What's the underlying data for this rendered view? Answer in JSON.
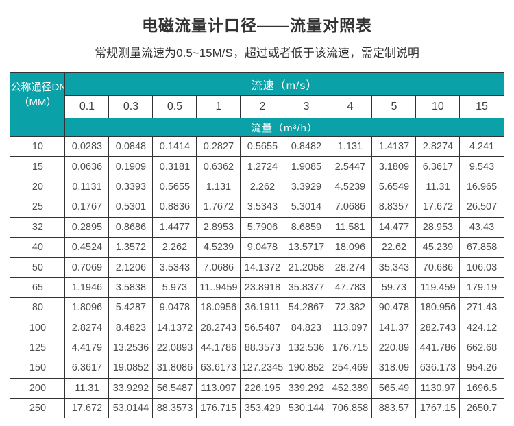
{
  "page": {
    "title": "电磁流量计口径——流量对照表",
    "subtitle": "常规测量流速为0.5~15M/S，超过或者低于该流速，需定制说明"
  },
  "colors": {
    "header_teal": "#0aa2a8",
    "border": "#333333",
    "header_text": "#ffffff",
    "data_text": "#4d4d4d",
    "title_text": "#333333"
  },
  "chart_data": {
    "type": "table",
    "title": "电磁流量计口径——流量对照表",
    "subtitle": "常规测量流速为0.5~15M/S，超过或者低于该流速，需定制说明",
    "corner_header_line1": "公称通径DN",
    "corner_header_line2": "（MM）",
    "velocity_header": "流速（m/s）",
    "flow_header": "流量（m³/h）",
    "velocities": [
      "0.1",
      "0.3",
      "0.5",
      "1",
      "2",
      "3",
      "4",
      "5",
      "10",
      "15"
    ],
    "rows": [
      {
        "dn": "10",
        "values": [
          "0.0283",
          "0.0848",
          "0.1414",
          "0.2827",
          "0.5655",
          "0.8482",
          "1.131",
          "1.4137",
          "2.8274",
          "4.241"
        ]
      },
      {
        "dn": "15",
        "values": [
          "0.0636",
          "0.1909",
          "0.3181",
          "0.6362",
          "1.2724",
          "1.9085",
          "2.5447",
          "3.1809",
          "6.3617",
          "9.543"
        ]
      },
      {
        "dn": "20",
        "values": [
          "0.1131",
          "0.3393",
          "0.5655",
          "1.131",
          "2.262",
          "3.3929",
          "4.5239",
          "5.6549",
          "11.31",
          "16.965"
        ]
      },
      {
        "dn": "25",
        "values": [
          "0.1767",
          "0.5301",
          "0.8836",
          "1.7672",
          "3.5343",
          "5.3014",
          "7.0686",
          "8.8357",
          "17.672",
          "26.507"
        ]
      },
      {
        "dn": "32",
        "values": [
          "0.2895",
          "0.8686",
          "1.4477",
          "2.8953",
          "5.7906",
          "8.6859",
          "11.581",
          "14.477",
          "28.953",
          "43.43"
        ]
      },
      {
        "dn": "40",
        "values": [
          "0.4524",
          "1.3572",
          "2.262",
          "4.5239",
          "9.0478",
          "13.5717",
          "18.096",
          "22.62",
          "45.239",
          "67.858"
        ]
      },
      {
        "dn": "50",
        "values": [
          "0.7069",
          "2.1206",
          "3.5343",
          "7.0686",
          "14.1372",
          "21.2058",
          "28.274",
          "35.343",
          "70.686",
          "106.03"
        ]
      },
      {
        "dn": "65",
        "values": [
          "1.1946",
          "3.5838",
          "5.973",
          "11..9459",
          "23.8918",
          "35.8377",
          "47.783",
          "59.73",
          "119.459",
          "179.19"
        ]
      },
      {
        "dn": "80",
        "values": [
          "1.8096",
          "5.4287",
          "9.0478",
          "18.0956",
          "36.1911",
          "54.2867",
          "72.382",
          "90.478",
          "180.956",
          "271.43"
        ]
      },
      {
        "dn": "100",
        "values": [
          "2.8274",
          "8.4823",
          "14.1372",
          "28.2743",
          "56.5487",
          "84.823",
          "113.097",
          "141.37",
          "282.743",
          "424.12"
        ]
      },
      {
        "dn": "125",
        "values": [
          "4.4179",
          "13.2536",
          "22.0893",
          "44.1786",
          "88.3573",
          "132.536",
          "176.715",
          "220.89",
          "441.786",
          "662.68"
        ]
      },
      {
        "dn": "150",
        "values": [
          "6.3617",
          "19.0852",
          "31.8086",
          "63.6173",
          "127.2345",
          "190.852",
          "254.469",
          "318.09",
          "636.173",
          "954.26"
        ]
      },
      {
        "dn": "200",
        "values": [
          "11.31",
          "33.9292",
          "56.5487",
          "113.097",
          "226.195",
          "339.292",
          "452.389",
          "565.49",
          "1130.97",
          "1696.5"
        ]
      },
      {
        "dn": "250",
        "values": [
          "17.672",
          "53.0144",
          "88.3573",
          "176.715",
          "353.429",
          "530.144",
          "706.858",
          "883.57",
          "1767.15",
          "2650.7"
        ]
      }
    ]
  }
}
